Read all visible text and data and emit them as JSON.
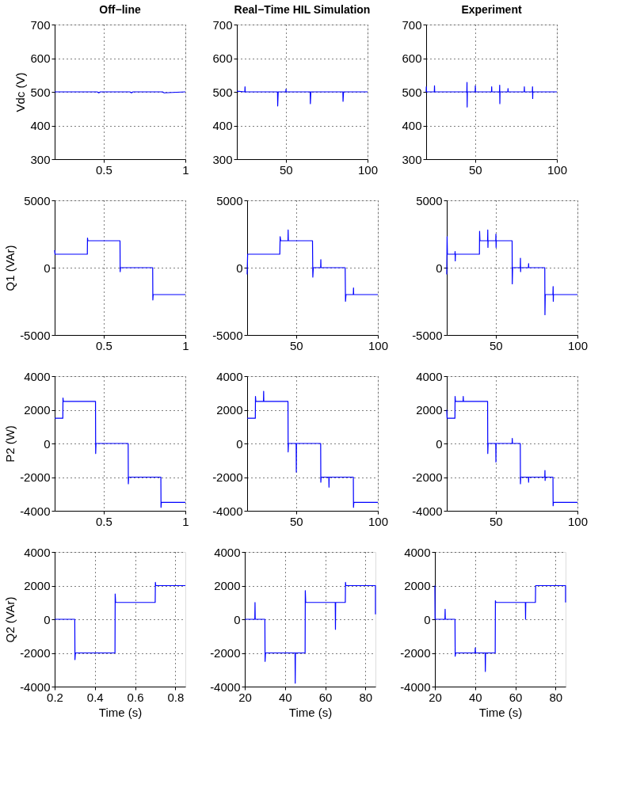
{
  "chart_data": [
    {
      "type": "line",
      "title": "Off−line",
      "ylabel": "Vdc (V)",
      "color": "#0000ff",
      "xlim": [
        0.2,
        1
      ],
      "xticks": [
        0.5,
        1
      ],
      "ylim": [
        300,
        700
      ],
      "yticks": [
        300,
        400,
        500,
        600,
        700
      ],
      "grid": true,
      "x": [
        0.2,
        0.46,
        0.47,
        0.48,
        0.66,
        0.67,
        0.68,
        0.86,
        0.87,
        1
      ],
      "values": [
        500,
        500,
        497,
        500,
        500,
        497,
        500,
        500,
        497,
        500
      ]
    },
    {
      "type": "line",
      "title": "Real−Time HIL Simulation",
      "color": "#0000ff",
      "xlim": [
        20,
        100
      ],
      "xticks": [
        50,
        100
      ],
      "ylim": [
        300,
        700
      ],
      "yticks": [
        300,
        400,
        500,
        600,
        700
      ],
      "grid": true,
      "x": [
        20,
        24.9,
        25,
        25.1,
        44.9,
        45,
        45.3,
        50,
        50.1,
        50.2,
        64.9,
        65,
        65.3,
        84.9,
        85,
        85.3,
        100
      ],
      "values": [
        502,
        500,
        515,
        500,
        500,
        458,
        500,
        500,
        508,
        500,
        500,
        465,
        500,
        500,
        472,
        500,
        500
      ]
    },
    {
      "type": "line",
      "title": "Experiment",
      "color": "#0000ff",
      "xlim": [
        20,
        100
      ],
      "xticks": [
        50,
        100
      ],
      "ylim": [
        300,
        700
      ],
      "yticks": [
        300,
        400,
        500,
        600,
        700
      ],
      "grid": true,
      "x": [
        20,
        20.1,
        20.2,
        25,
        25.1,
        25.2,
        44.9,
        45,
        45.1,
        45.2,
        50,
        50.1,
        50.2,
        60,
        60.1,
        60.2,
        64.9,
        65,
        65.1,
        65.2,
        70,
        70.1,
        70.2,
        80,
        80.1,
        80.2,
        85,
        85.1,
        85.2,
        85.3,
        100
      ],
      "values": [
        500,
        515,
        500,
        500,
        518,
        500,
        500,
        528,
        455,
        500,
        500,
        518,
        500,
        500,
        515,
        500,
        500,
        520,
        465,
        500,
        500,
        510,
        500,
        500,
        515,
        500,
        500,
        515,
        480,
        500,
        500
      ]
    },
    {
      "type": "line",
      "ylabel": "Q1 (VAr)",
      "color": "#0000ff",
      "xlim": [
        0.2,
        1
      ],
      "xticks": [
        0.5,
        1
      ],
      "ylim": [
        -5000,
        5000
      ],
      "yticks": [
        -5000,
        0,
        5000
      ],
      "grid": true,
      "x": [
        0.2,
        0.202,
        0.4,
        0.401,
        0.403,
        0.6,
        0.601,
        0.603,
        0.8,
        0.801,
        0.803,
        1
      ],
      "values": [
        1300,
        1000,
        1000,
        2200,
        2000,
        2000,
        -300,
        0,
        0,
        -2400,
        -2000,
        -2000
      ]
    },
    {
      "type": "line",
      "color": "#0000ff",
      "xlim": [
        20,
        100
      ],
      "xticks": [
        50,
        100
      ],
      "ylim": [
        -5000,
        5000
      ],
      "yticks": [
        -5000,
        0,
        5000
      ],
      "grid": true,
      "x": [
        20,
        20.3,
        40,
        40.2,
        40.5,
        45,
        45.1,
        45.2,
        60,
        60.2,
        60.5,
        65,
        65.1,
        65.2,
        80,
        80.2,
        80.5,
        85,
        85.1,
        85.2,
        100
      ],
      "values": [
        -500,
        1000,
        1000,
        2300,
        2000,
        2000,
        2800,
        2000,
        2000,
        -700,
        0,
        0,
        600,
        0,
        0,
        -2500,
        -2000,
        -2000,
        -1500,
        -2000,
        -2000
      ]
    },
    {
      "type": "line",
      "color": "#0000ff",
      "xlim": [
        20,
        100
      ],
      "xticks": [
        50,
        100
      ],
      "ylim": [
        -5000,
        5000
      ],
      "yticks": [
        -5000,
        0,
        5000
      ],
      "grid": true,
      "x": [
        20,
        20.2,
        20.4,
        25,
        25.1,
        25.2,
        25.3,
        40,
        40.1,
        40.3,
        45,
        45.1,
        45.2,
        45.3,
        50,
        50.1,
        50.2,
        50.3,
        60,
        60.1,
        60.3,
        65,
        65.1,
        65.2,
        65.3,
        70,
        70.1,
        70.2,
        80,
        80.1,
        80.3,
        85,
        85.1,
        85.2,
        85.3,
        100
      ],
      "values": [
        -500,
        2300,
        1000,
        1000,
        1200,
        500,
        1000,
        1000,
        2700,
        2000,
        2000,
        2800,
        1500,
        2000,
        2000,
        2500,
        1500,
        2000,
        2000,
        -1200,
        0,
        0,
        700,
        -300,
        0,
        0,
        300,
        0,
        0,
        -3500,
        -2000,
        -2000,
        -1400,
        -2500,
        -2000,
        -2000
      ]
    },
    {
      "type": "line",
      "ylabel": "P2 (W)",
      "color": "#0000ff",
      "xlim": [
        0.2,
        1
      ],
      "xticks": [
        0.5,
        1
      ],
      "ylim": [
        -4000,
        4000
      ],
      "yticks": [
        -4000,
        -2000,
        0,
        2000,
        4000
      ],
      "grid": true,
      "x": [
        0.2,
        0.25,
        0.251,
        0.253,
        0.45,
        0.451,
        0.453,
        0.65,
        0.651,
        0.653,
        0.85,
        0.851,
        0.853,
        1
      ],
      "values": [
        1500,
        1500,
        2700,
        2500,
        2500,
        -600,
        0,
        0,
        -2400,
        -2000,
        -2000,
        -3800,
        -3500,
        -3500
      ]
    },
    {
      "type": "line",
      "color": "#0000ff",
      "xlim": [
        20,
        100
      ],
      "xticks": [
        50,
        100
      ],
      "ylim": [
        -4000,
        4000
      ],
      "yticks": [
        -4000,
        -2000,
        0,
        2000,
        4000
      ],
      "grid": true,
      "x": [
        20,
        25,
        25.1,
        25.3,
        30,
        30.1,
        30.2,
        45,
        45.1,
        45.3,
        50,
        50.1,
        50.2,
        65,
        65.1,
        65.3,
        70,
        70.1,
        70.2,
        85,
        85.1,
        85.3,
        100
      ],
      "values": [
        1500,
        1500,
        2800,
        2500,
        2500,
        3100,
        2500,
        2500,
        -500,
        0,
        0,
        -1700,
        0,
        0,
        -2300,
        -2000,
        -2000,
        -2600,
        -2000,
        -2000,
        -3800,
        -3500,
        -3500
      ]
    },
    {
      "type": "line",
      "color": "#0000ff",
      "xlim": [
        20,
        100
      ],
      "xticks": [
        50,
        100
      ],
      "ylim": [
        -4000,
        4000
      ],
      "yticks": [
        -4000,
        -2000,
        0,
        2000,
        4000
      ],
      "grid": true,
      "x": [
        20,
        20.2,
        25,
        25.1,
        25.3,
        30,
        30.1,
        30.2,
        45,
        45.1,
        45.3,
        50,
        50.1,
        50.2,
        60,
        60.1,
        60.2,
        65,
        65.1,
        65.3,
        70,
        70.1,
        70.2,
        80,
        80.1,
        80.2,
        80.3,
        85,
        85.1,
        85.3,
        100
      ],
      "values": [
        2000,
        1500,
        1500,
        2800,
        2500,
        2500,
        2800,
        2500,
        2500,
        -600,
        0,
        0,
        -1100,
        0,
        0,
        300,
        0,
        0,
        -2400,
        -2000,
        -2000,
        -2300,
        -2000,
        -2000,
        -1600,
        -2200,
        -2000,
        -2000,
        -3700,
        -3500,
        -3500
      ]
    },
    {
      "type": "line",
      "ylabel": "Q2 (VAr)",
      "xlabel": "Time (s)",
      "color": "#0000ff",
      "xlim": [
        0.2,
        0.85
      ],
      "xticks": [
        0.2,
        0.4,
        0.6,
        0.8
      ],
      "ylim": [
        -4000,
        4000
      ],
      "yticks": [
        -4000,
        -2000,
        0,
        2000,
        4000
      ],
      "grid": true,
      "x": [
        0.2,
        0.3,
        0.301,
        0.303,
        0.5,
        0.501,
        0.503,
        0.7,
        0.701,
        0.703,
        0.85
      ],
      "values": [
        0,
        0,
        -2400,
        -2000,
        -2000,
        1500,
        1000,
        1000,
        2200,
        2000,
        2000
      ]
    },
    {
      "type": "line",
      "xlabel": "Time (s)",
      "color": "#0000ff",
      "xlim": [
        20,
        85
      ],
      "xticks": [
        20,
        40,
        60,
        80
      ],
      "ylim": [
        -4000,
        4000
      ],
      "yticks": [
        -4000,
        -2000,
        0,
        2000,
        4000
      ],
      "grid": true,
      "x": [
        20,
        25,
        25.1,
        25.2,
        30,
        30.1,
        30.3,
        45,
        45.1,
        45.2,
        50,
        50.1,
        50.3,
        65,
        65.1,
        65.2,
        70,
        70.1,
        70.3,
        85,
        85
      ],
      "values": [
        0,
        0,
        1000,
        0,
        0,
        -2500,
        -2000,
        -2000,
        -3800,
        -2000,
        -2000,
        1700,
        1000,
        1000,
        -600,
        1000,
        1000,
        2200,
        2000,
        2000,
        300
      ]
    },
    {
      "type": "line",
      "xlabel": "Time (s)",
      "color": "#0000ff",
      "xlim": [
        20,
        85
      ],
      "xticks": [
        20,
        40,
        60,
        80
      ],
      "ylim": [
        -4000,
        4000
      ],
      "yticks": [
        -4000,
        -2000,
        0,
        2000,
        4000
      ],
      "grid": true,
      "x": [
        20,
        20.1,
        25,
        25.1,
        25.2,
        30,
        30.1,
        30.3,
        40,
        40.1,
        40.2,
        45,
        45.1,
        45.2,
        50,
        50.1,
        50.3,
        65,
        65.1,
        65.2,
        70,
        70.1,
        85,
        85
      ],
      "values": [
        2000,
        0,
        0,
        600,
        0,
        0,
        -2200,
        -2000,
        -2000,
        -1700,
        -2000,
        -2000,
        -3100,
        -2000,
        -2000,
        1100,
        1000,
        1000,
        0,
        1000,
        1000,
        2000,
        2000,
        1000
      ]
    }
  ]
}
